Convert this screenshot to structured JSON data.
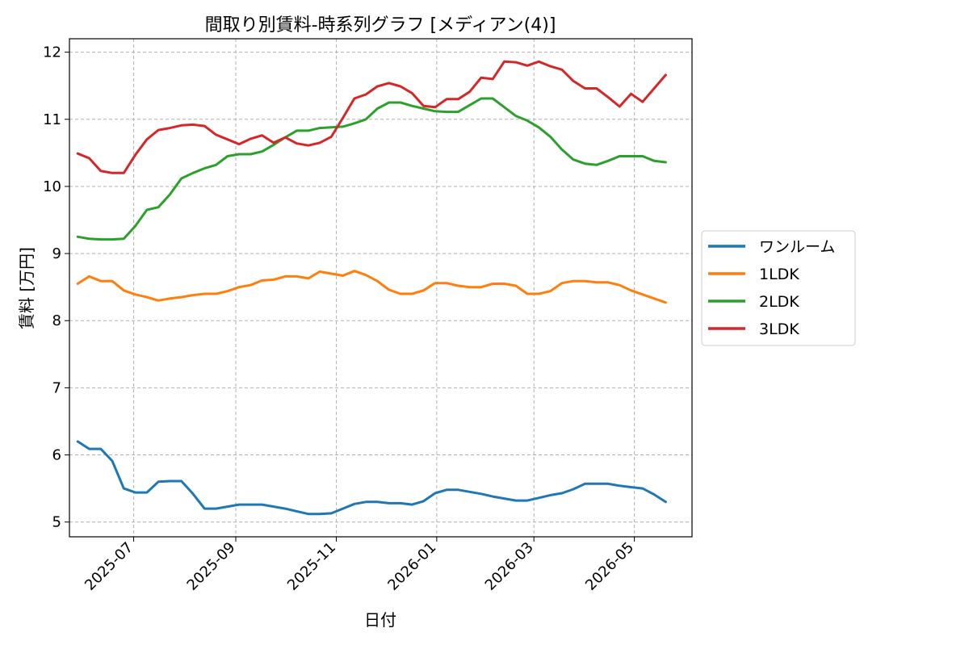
{
  "chart_data": {
    "type": "line",
    "title": "間取り別賃料-時系列グラフ [メディアン(4)]",
    "xlabel": "日付",
    "ylabel": "賃料 [万円]",
    "ylim": [
      4.78,
      12.2
    ],
    "yticks": [
      5,
      6,
      7,
      8,
      9,
      10,
      11,
      12
    ],
    "xlim": [
      "2025-05-23",
      "2026-06-05"
    ],
    "xticks": [
      "2025-07",
      "2025-09",
      "2025-11",
      "2026-01",
      "2026-03",
      "2026-05"
    ],
    "grid": true,
    "legend_position": "right-outside",
    "x": [
      "2025-05-28",
      "2025-06-04",
      "2025-06-11",
      "2025-06-18",
      "2025-06-25",
      "2025-07-02",
      "2025-07-09",
      "2025-07-16",
      "2025-07-23",
      "2025-07-30",
      "2025-08-06",
      "2025-08-13",
      "2025-08-20",
      "2025-08-27",
      "2025-09-03",
      "2025-09-10",
      "2025-09-17",
      "2025-09-24",
      "2025-10-01",
      "2025-10-08",
      "2025-10-15",
      "2025-10-22",
      "2025-10-29",
      "2025-11-05",
      "2025-11-12",
      "2025-11-19",
      "2025-11-26",
      "2025-12-03",
      "2025-12-10",
      "2025-12-17",
      "2025-12-24",
      "2025-12-31",
      "2026-01-07",
      "2026-01-14",
      "2026-01-21",
      "2026-01-28",
      "2026-02-04",
      "2026-02-11",
      "2026-02-18",
      "2026-02-25",
      "2026-03-04",
      "2026-03-11",
      "2026-03-18",
      "2026-03-25",
      "2026-04-01",
      "2026-04-08",
      "2026-04-15",
      "2026-04-22",
      "2026-04-29",
      "2026-05-06",
      "2026-05-13",
      "2026-05-20"
    ],
    "series": [
      {
        "name": "ワンルーム",
        "color": "#1f77b4",
        "values": [
          6.2,
          6.09,
          6.09,
          5.91,
          5.5,
          5.44,
          5.44,
          5.6,
          5.61,
          5.61,
          5.42,
          5.2,
          5.2,
          5.23,
          5.26,
          5.26,
          5.26,
          5.23,
          5.2,
          5.16,
          5.12,
          5.12,
          5.13,
          5.2,
          5.27,
          5.3,
          5.3,
          5.28,
          5.28,
          5.26,
          5.31,
          5.43,
          5.48,
          5.48,
          5.45,
          5.42,
          5.38,
          5.35,
          5.32,
          5.32,
          5.36,
          5.4,
          5.43,
          5.49,
          5.57,
          5.57,
          5.57,
          5.54,
          5.52,
          5.5,
          5.41,
          5.3
        ]
      },
      {
        "name": "1LDK",
        "color": "#ff7f0e",
        "values": [
          8.55,
          8.66,
          8.59,
          8.59,
          8.45,
          8.39,
          8.35,
          8.3,
          8.33,
          8.35,
          8.38,
          8.4,
          8.4,
          8.44,
          8.5,
          8.53,
          8.6,
          8.61,
          8.66,
          8.66,
          8.63,
          8.73,
          8.7,
          8.67,
          8.74,
          8.68,
          8.59,
          8.46,
          8.4,
          8.4,
          8.45,
          8.56,
          8.56,
          8.52,
          8.5,
          8.5,
          8.55,
          8.55,
          8.52,
          8.4,
          8.4,
          8.44,
          8.56,
          8.59,
          8.59,
          8.57,
          8.57,
          8.53,
          8.45,
          8.39,
          8.33,
          8.27
        ]
      },
      {
        "name": "2LDK",
        "color": "#2ca02c",
        "values": [
          9.25,
          9.22,
          9.21,
          9.21,
          9.22,
          9.41,
          9.65,
          9.69,
          9.88,
          10.12,
          10.2,
          10.27,
          10.32,
          10.45,
          10.48,
          10.48,
          10.52,
          10.62,
          10.73,
          10.83,
          10.83,
          10.87,
          10.88,
          10.89,
          10.94,
          11.0,
          11.16,
          11.25,
          11.25,
          11.2,
          11.16,
          11.12,
          11.11,
          11.11,
          11.21,
          11.31,
          11.31,
          11.18,
          11.05,
          10.98,
          10.88,
          10.74,
          10.55,
          10.4,
          10.34,
          10.32,
          10.38,
          10.45,
          10.45,
          10.45,
          10.38,
          10.36
        ]
      },
      {
        "name": "3LDK",
        "color": "#d62728",
        "values": [
          10.49,
          10.42,
          10.23,
          10.2,
          10.2,
          10.47,
          10.7,
          10.84,
          10.87,
          10.91,
          10.92,
          10.9,
          10.77,
          10.7,
          10.63,
          10.71,
          10.76,
          10.65,
          10.73,
          10.64,
          10.61,
          10.65,
          10.74,
          11.02,
          11.31,
          11.37,
          11.49,
          11.54,
          11.49,
          11.39,
          11.2,
          11.18,
          11.3,
          11.3,
          11.41,
          11.62,
          11.6,
          11.86,
          11.85,
          11.8,
          11.86,
          11.79,
          11.74,
          11.57,
          11.46,
          11.46,
          11.33,
          11.19,
          11.38,
          11.26,
          11.46,
          11.66
        ]
      }
    ]
  }
}
